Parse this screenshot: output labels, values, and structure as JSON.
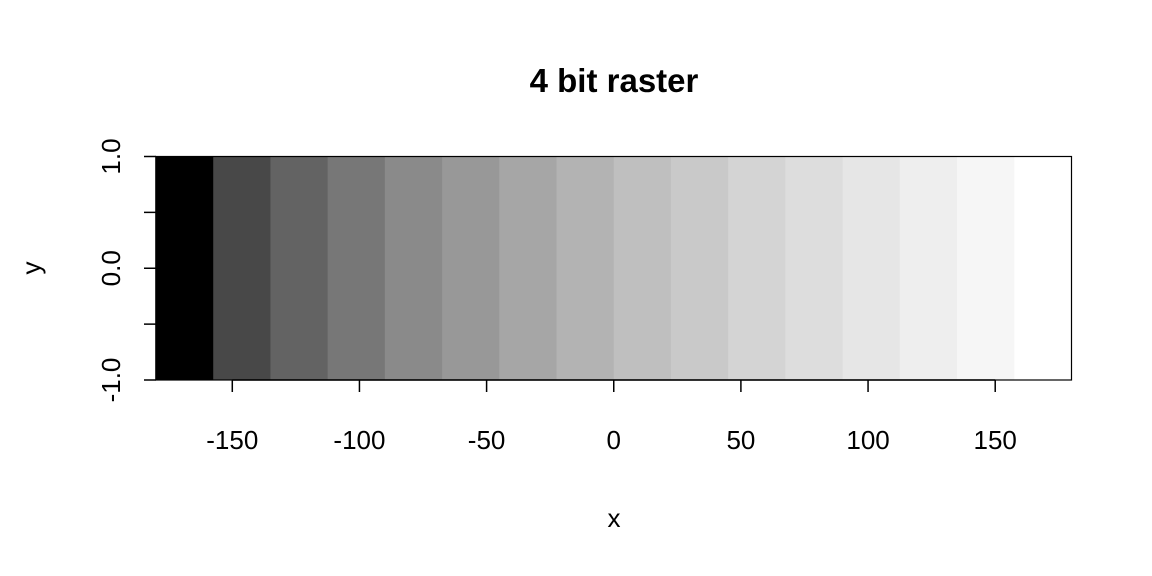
{
  "chart_data": {
    "type": "heatmap",
    "title": "4 bit raster",
    "xlabel": "x",
    "ylabel": "y",
    "xlim": [
      -180,
      180
    ],
    "ylim": [
      -1,
      1
    ],
    "x_ticks": [
      -150,
      -100,
      -50,
      0,
      50,
      100,
      150
    ],
    "x_tick_labels": [
      "-150",
      "-100",
      "-50",
      "0",
      "50",
      "100",
      "150"
    ],
    "y_ticks": [
      -1,
      -0.5,
      0,
      0.5,
      1
    ],
    "y_tick_labels": [
      "-1.0",
      "",
      "0.0",
      "",
      "1.0"
    ],
    "cells": [
      {
        "x0": -180.0,
        "x1": -157.5,
        "value": 0,
        "color": "#000000"
      },
      {
        "x0": -157.5,
        "x1": -135.0,
        "value": 1,
        "color": "#484848"
      },
      {
        "x0": -135.0,
        "x1": -112.5,
        "value": 2,
        "color": "#636363"
      },
      {
        "x0": -112.5,
        "x1": -90.0,
        "value": 3,
        "color": "#777777"
      },
      {
        "x0": -90.0,
        "x1": -67.5,
        "value": 4,
        "color": "#8a8a8a"
      },
      {
        "x0": -67.5,
        "x1": -45.0,
        "value": 5,
        "color": "#989898"
      },
      {
        "x0": -45.0,
        "x1": -22.5,
        "value": 6,
        "color": "#a6a6a6"
      },
      {
        "x0": -22.5,
        "x1": 0.0,
        "value": 7,
        "color": "#b3b3b3"
      },
      {
        "x0": 0.0,
        "x1": 22.5,
        "value": 8,
        "color": "#bfbfbf"
      },
      {
        "x0": 22.5,
        "x1": 45.0,
        "value": 9,
        "color": "#c9c9c9"
      },
      {
        "x0": 45.0,
        "x1": 67.5,
        "value": 10,
        "color": "#d4d4d4"
      },
      {
        "x0": 67.5,
        "x1": 90.0,
        "value": 11,
        "color": "#dddddd"
      },
      {
        "x0": 90.0,
        "x1": 112.5,
        "value": 12,
        "color": "#e6e6e6"
      },
      {
        "x0": 112.5,
        "x1": 135.0,
        "value": 13,
        "color": "#eeeeee"
      },
      {
        "x0": 135.0,
        "x1": 157.5,
        "value": 14,
        "color": "#f6f6f6"
      },
      {
        "x0": 157.5,
        "x1": 180.0,
        "value": 15,
        "color": "#ffffff"
      }
    ],
    "y_range": [
      -1,
      1
    ],
    "grid": false,
    "legend": "none"
  }
}
